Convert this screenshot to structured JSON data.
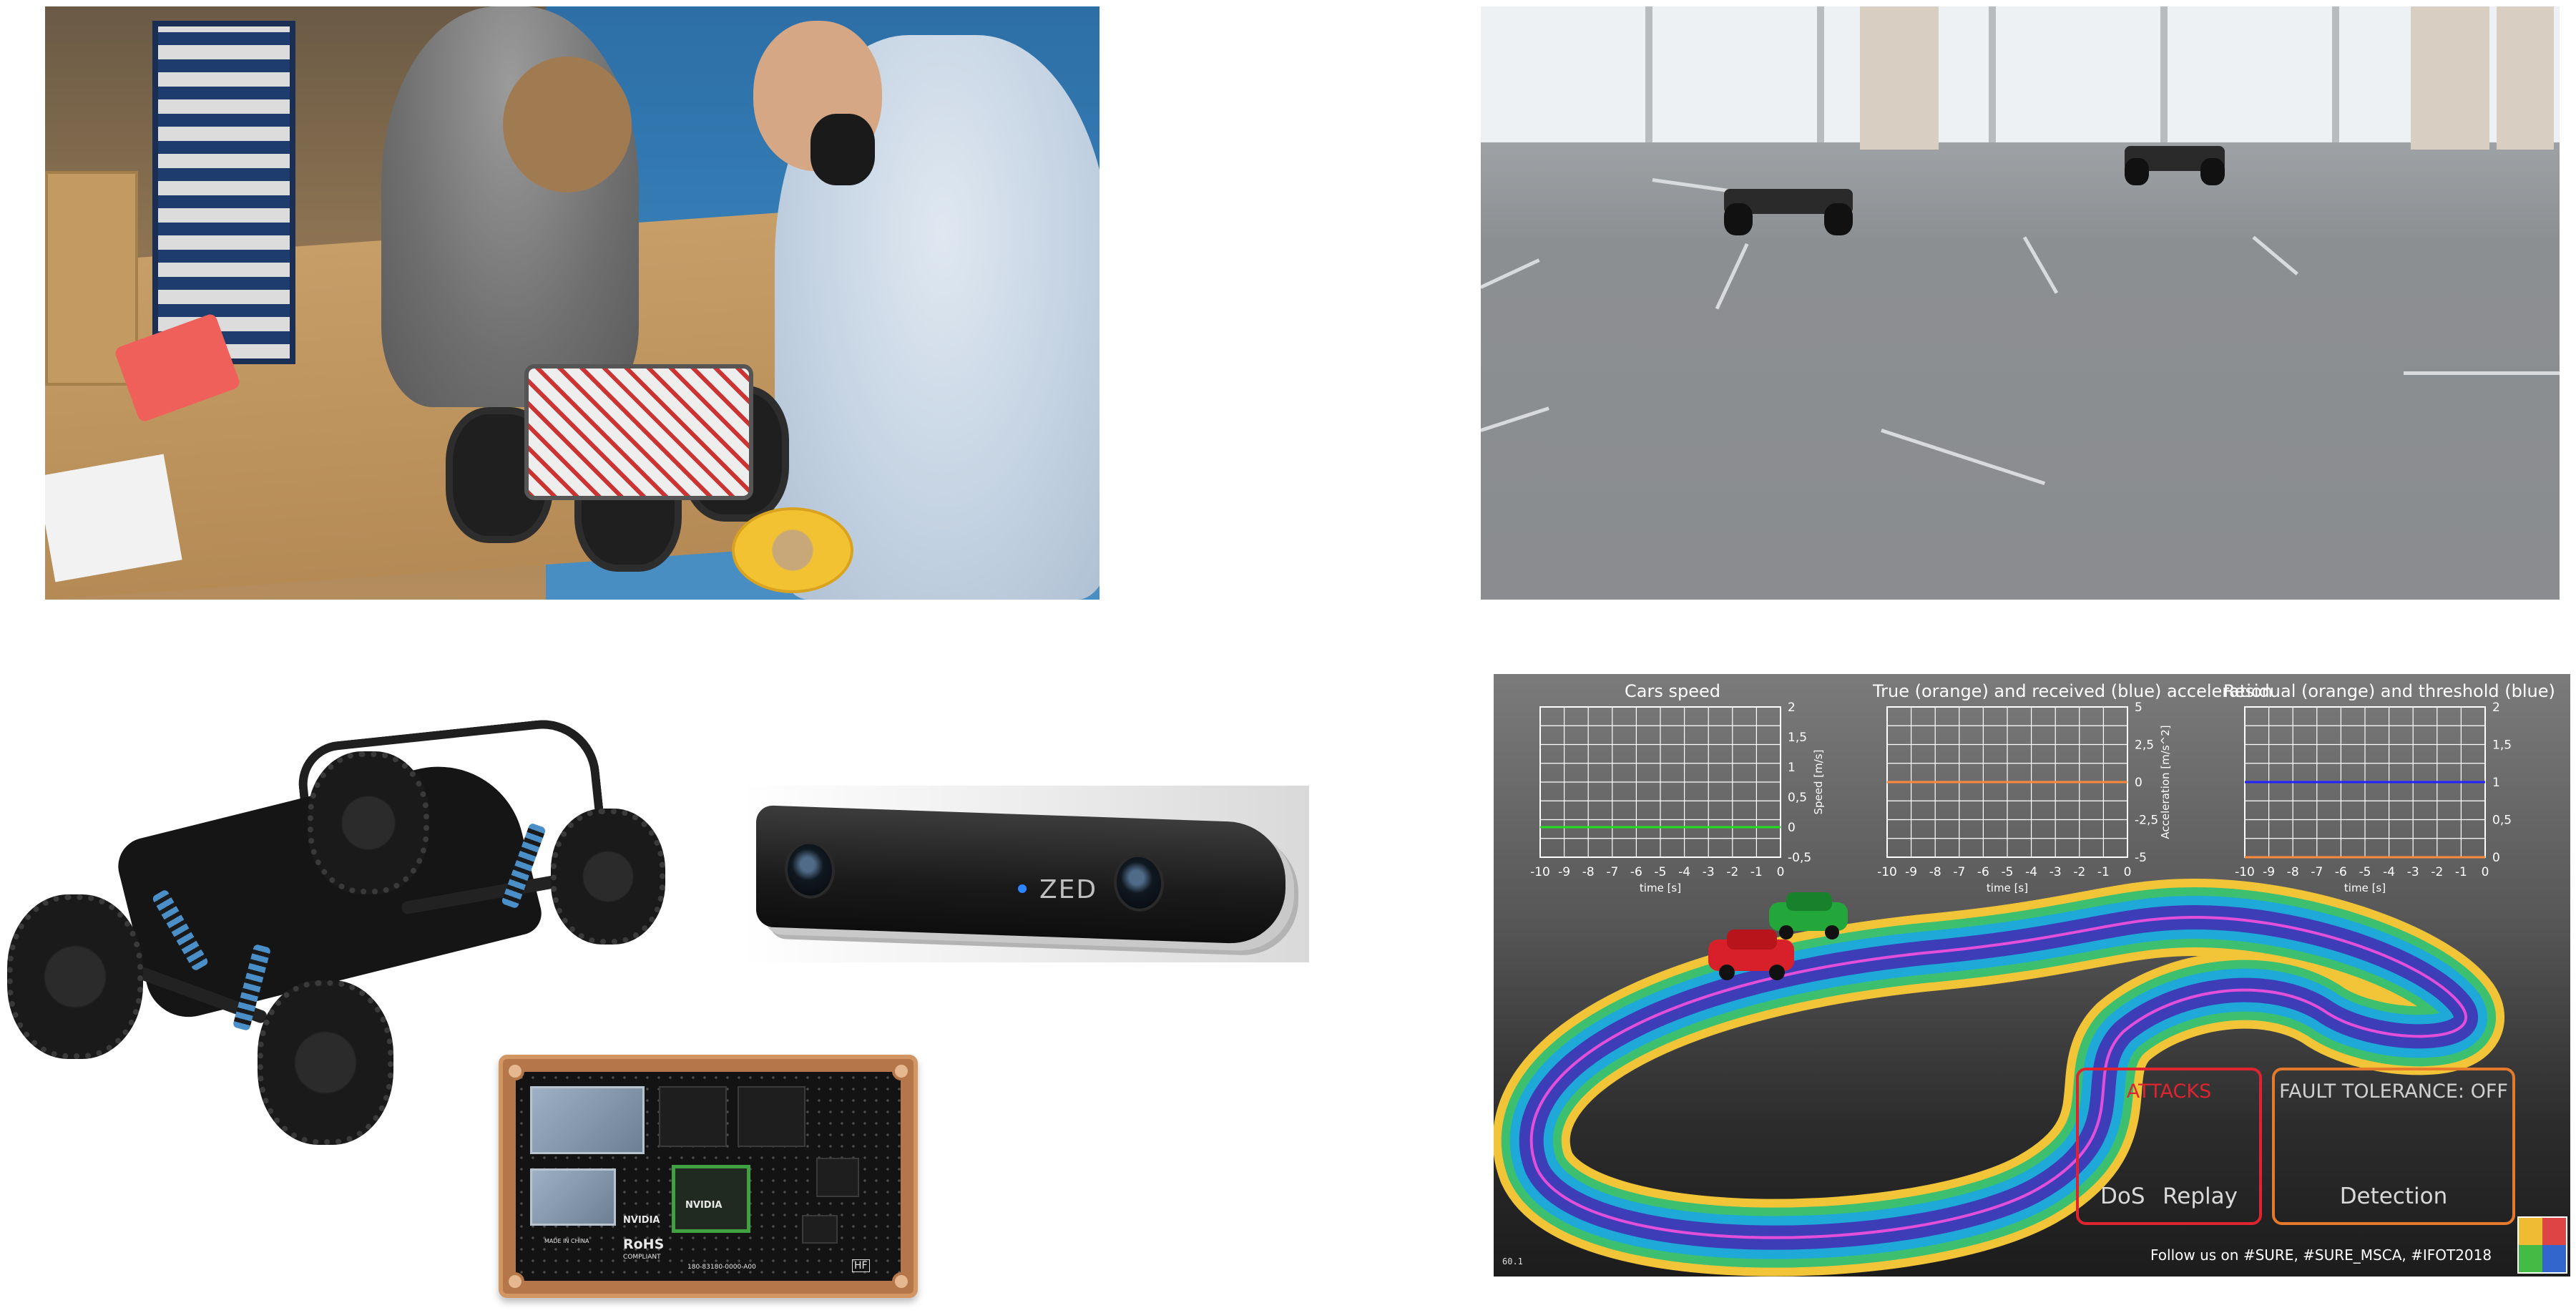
{
  "photos": {
    "workshop": {
      "icon": "workshop-photo"
    },
    "hall": {
      "icon": "hall-photo"
    }
  },
  "renders": {
    "zed": {
      "logo_text": "ZED"
    },
    "board": {
      "brand_left": "NVIDIA",
      "brand_gpu": "NVIDIA",
      "rohs": "RoHS",
      "compliant": "COMPLIANT",
      "serial": "180-83180-0000-A00",
      "made_in": "MADE IN CHINA",
      "hf": "HF"
    }
  },
  "dashboard": {
    "charts": [
      {
        "title": "Cars speed",
        "xlabel": "time [s]",
        "ylabel": "Speed [m/s]"
      },
      {
        "title": "True (orange) and received (blue) acceleration",
        "xlabel": "time [s]",
        "ylabel": "Acceleration [m/s^2]"
      },
      {
        "title": "Residual (orange) and threshold (blue)",
        "xlabel": "time [s]",
        "ylabel": ""
      }
    ],
    "attacks": {
      "title": "ATTACKS",
      "items": [
        "DoS",
        "Replay"
      ]
    },
    "fault_tolerance": {
      "title": "FAULT TOLERANCE: OFF",
      "item": "Detection"
    },
    "fps": "60.1",
    "follow_text": "Follow us on #SURE, #SURE_MSCA, #IFOT2018",
    "colors": {
      "attacks": "#e0242f",
      "fault": "#e57a2c",
      "speed_line": "#22dd22",
      "orange": "#ff8a3c",
      "blue": "#2222ff"
    }
  },
  "chart_data": [
    {
      "type": "line",
      "title": "Cars speed",
      "xlabel": "time [s]",
      "ylabel": "Speed [m/s]",
      "x_ticks": [
        "-10",
        "-9",
        "-8",
        "-7",
        "-6",
        "-5",
        "-4",
        "-3",
        "-2",
        "-1",
        "0"
      ],
      "y_ticks": [
        "2",
        "1,5",
        "1",
        "0,5",
        "0",
        "-0,5"
      ],
      "xlim": [
        -10,
        0
      ],
      "ylim": [
        -0.5,
        2
      ],
      "grid": true,
      "series": [
        {
          "color": "#22dd22",
          "x": [
            -10,
            0
          ],
          "y": [
            0,
            0
          ]
        }
      ]
    },
    {
      "type": "line",
      "title": "True (orange) and received (blue) acceleration",
      "xlabel": "time [s]",
      "ylabel": "Acceleration [m/s^2]",
      "x_ticks": [
        "-10",
        "-9",
        "-8",
        "-7",
        "-6",
        "-5",
        "-4",
        "-3",
        "-2",
        "-1",
        "0"
      ],
      "y_ticks": [
        "5",
        "2,5",
        "0",
        "-2,5",
        "-5"
      ],
      "xlim": [
        -10,
        0
      ],
      "ylim": [
        -5,
        5
      ],
      "grid": true,
      "series": [
        {
          "color": "#ff8a3c",
          "x": [
            -10,
            0
          ],
          "y": [
            0,
            0
          ]
        }
      ]
    },
    {
      "type": "line",
      "title": "Residual (orange) and threshold (blue)",
      "xlabel": "time [s]",
      "ylabel": "",
      "x_ticks": [
        "-10",
        "-9",
        "-8",
        "-7",
        "-6",
        "-5",
        "-4",
        "-3",
        "-2",
        "-1",
        "0"
      ],
      "y_ticks": [
        "2",
        "1,5",
        "1",
        "0,5",
        "0"
      ],
      "xlim": [
        -10,
        0
      ],
      "ylim": [
        0,
        2
      ],
      "grid": true,
      "series": [
        {
          "color": "#2222ff",
          "x": [
            -10,
            0
          ],
          "y": [
            1,
            1
          ]
        },
        {
          "color": "#ff8a3c",
          "x": [
            -10,
            0
          ],
          "y": [
            0,
            0
          ]
        }
      ]
    }
  ]
}
